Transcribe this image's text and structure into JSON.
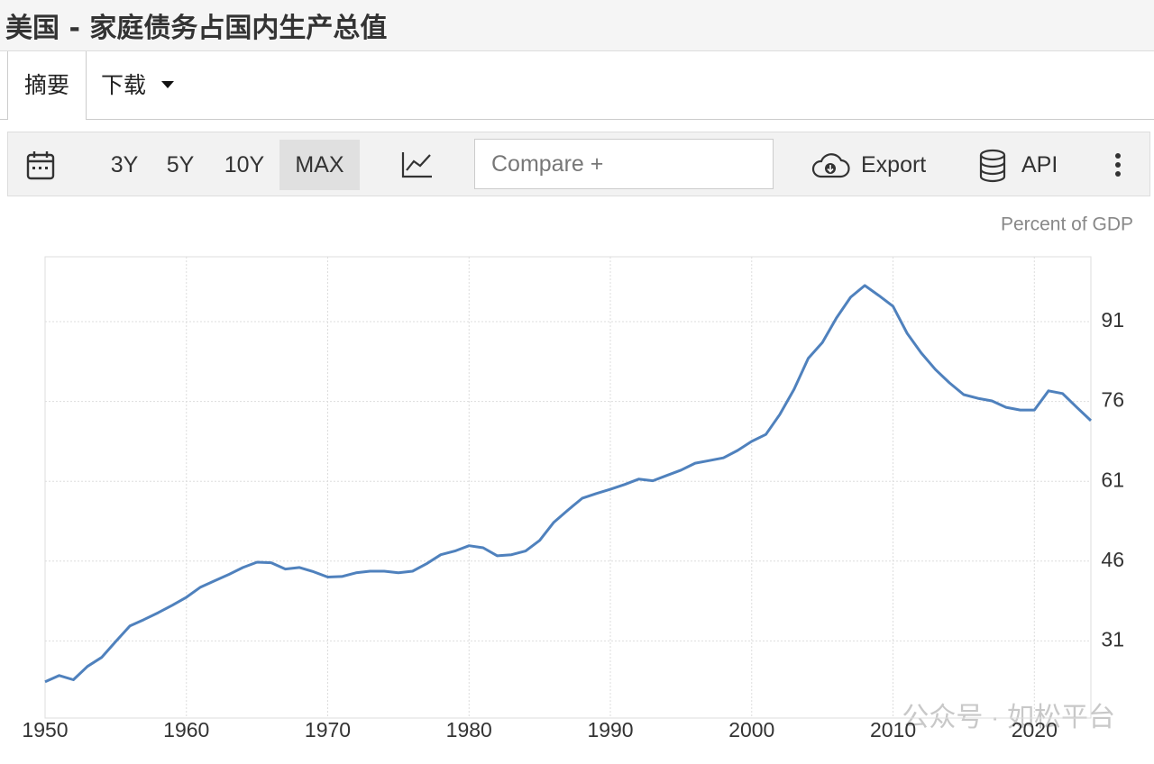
{
  "header": {
    "title": "美国 - 家庭债务占国内生产总值"
  },
  "tabs": [
    "摘要",
    "下载"
  ],
  "toolbar": {
    "ranges": [
      "3Y",
      "5Y",
      "10Y",
      "MAX"
    ],
    "compare": "Compare +",
    "export": "Export",
    "api": "API"
  },
  "watermark": "公众号 · 如松平台",
  "chart_data": {
    "type": "line",
    "unit": "Percent of GDP",
    "color": "#4f81bd",
    "grid": true,
    "x": [
      1950,
      1951,
      1952,
      1953,
      1954,
      1955,
      1956,
      1957,
      1958,
      1959,
      1960,
      1961,
      1962,
      1963,
      1964,
      1965,
      1966,
      1967,
      1968,
      1969,
      1970,
      1971,
      1972,
      1973,
      1974,
      1975,
      1976,
      1977,
      1978,
      1979,
      1980,
      1981,
      1982,
      1983,
      1984,
      1985,
      1986,
      1987,
      1988,
      1989,
      1990,
      1991,
      1992,
      1993,
      1994,
      1995,
      1996,
      1997,
      1998,
      1999,
      2000,
      2001,
      2002,
      2003,
      2004,
      2005,
      2006,
      2007,
      2008,
      2009,
      2010,
      2011,
      2012,
      2013,
      2014,
      2015,
      2016,
      2017,
      2018,
      2019,
      2020,
      2021,
      2022,
      2023,
      2024
    ],
    "values": [
      23.3,
      24.5,
      23.7,
      26.2,
      27.9,
      30.9,
      33.8,
      35,
      36.3,
      37.7,
      39.2,
      41.1,
      42.3,
      43.5,
      44.8,
      45.8,
      45.7,
      44.5,
      44.8,
      44,
      43,
      43.1,
      43.8,
      44.1,
      44.1,
      43.8,
      44.1,
      45.5,
      47.2,
      47.9,
      48.9,
      48.5,
      47,
      47.2,
      47.9,
      49.9,
      53.3,
      55.6,
      57.8,
      58.7,
      59.5,
      60.4,
      61.4,
      61.1,
      62.1,
      63.1,
      64.4,
      64.9,
      65.4,
      66.8,
      68.5,
      69.8,
      73.6,
      78.3,
      84.1,
      87.1,
      91.7,
      95.6,
      97.8,
      95.9,
      93.9,
      88.8,
      85.1,
      82,
      79.5,
      77.3,
      76.6,
      76.1,
      74.9,
      74.4,
      74.4,
      78,
      77.5,
      74.9,
      72.4
    ],
    "xlim": [
      1950,
      2024
    ],
    "ylim": [
      16.5,
      103.2
    ],
    "xticks": [
      1950,
      1960,
      1970,
      1980,
      1990,
      2000,
      2010,
      2020
    ],
    "yticks": [
      31,
      46,
      61,
      76,
      91
    ]
  }
}
